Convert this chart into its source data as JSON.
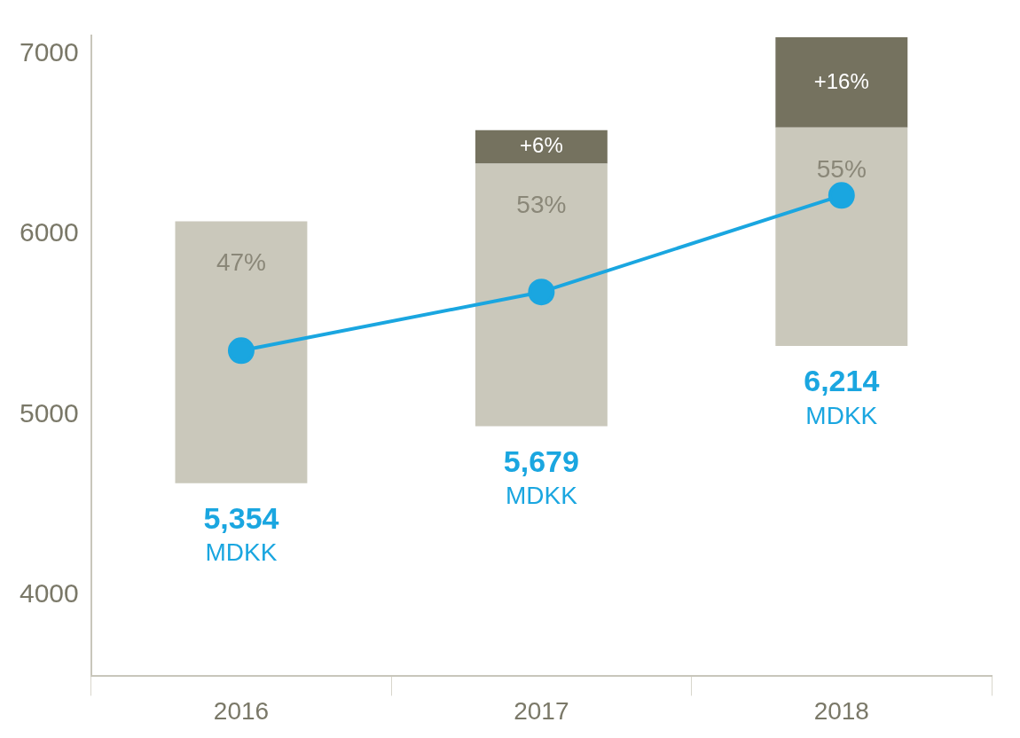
{
  "chart_data": {
    "type": "bar",
    "categories": [
      "2016",
      "2017",
      "2018"
    ],
    "stacked": true,
    "series": [
      {
        "color": "#cac8bb",
        "base": [
          4620,
          4935,
          5380
        ],
        "values": [
          1450,
          1455,
          1210
        ]
      },
      {
        "color": "#75725f",
        "base": [
          null,
          6390,
          6590
        ],
        "values": [
          null,
          185,
          500
        ]
      },
      {
        "type": "line",
        "color": "#1aa6e0",
        "values": [
          5354,
          5679,
          6214
        ],
        "marker": "circle"
      }
    ],
    "annotations": [
      {
        "text": "47%",
        "x": "2016",
        "y": 6070
      },
      {
        "text": "53%",
        "x": "2017",
        "y": 6390
      },
      {
        "text": "55%",
        "x": "2018",
        "y": 6590
      },
      {
        "text": "+6%",
        "x": "2017",
        "y": 6575
      },
      {
        "text": "+16%",
        "x": "2018",
        "y": 7090
      },
      {
        "text": "5,354 MDKK",
        "x": "2016",
        "y": 4620
      },
      {
        "text": "5,679 MDKK",
        "x": "2017",
        "y": 4935
      },
      {
        "text": "6,214 MDKK",
        "x": "2018",
        "y": 5380
      }
    ],
    "ylim": [
      3550,
      7100
    ],
    "yticks": [
      4000,
      5000,
      6000,
      7000
    ],
    "grid": false,
    "legend": false
  }
}
